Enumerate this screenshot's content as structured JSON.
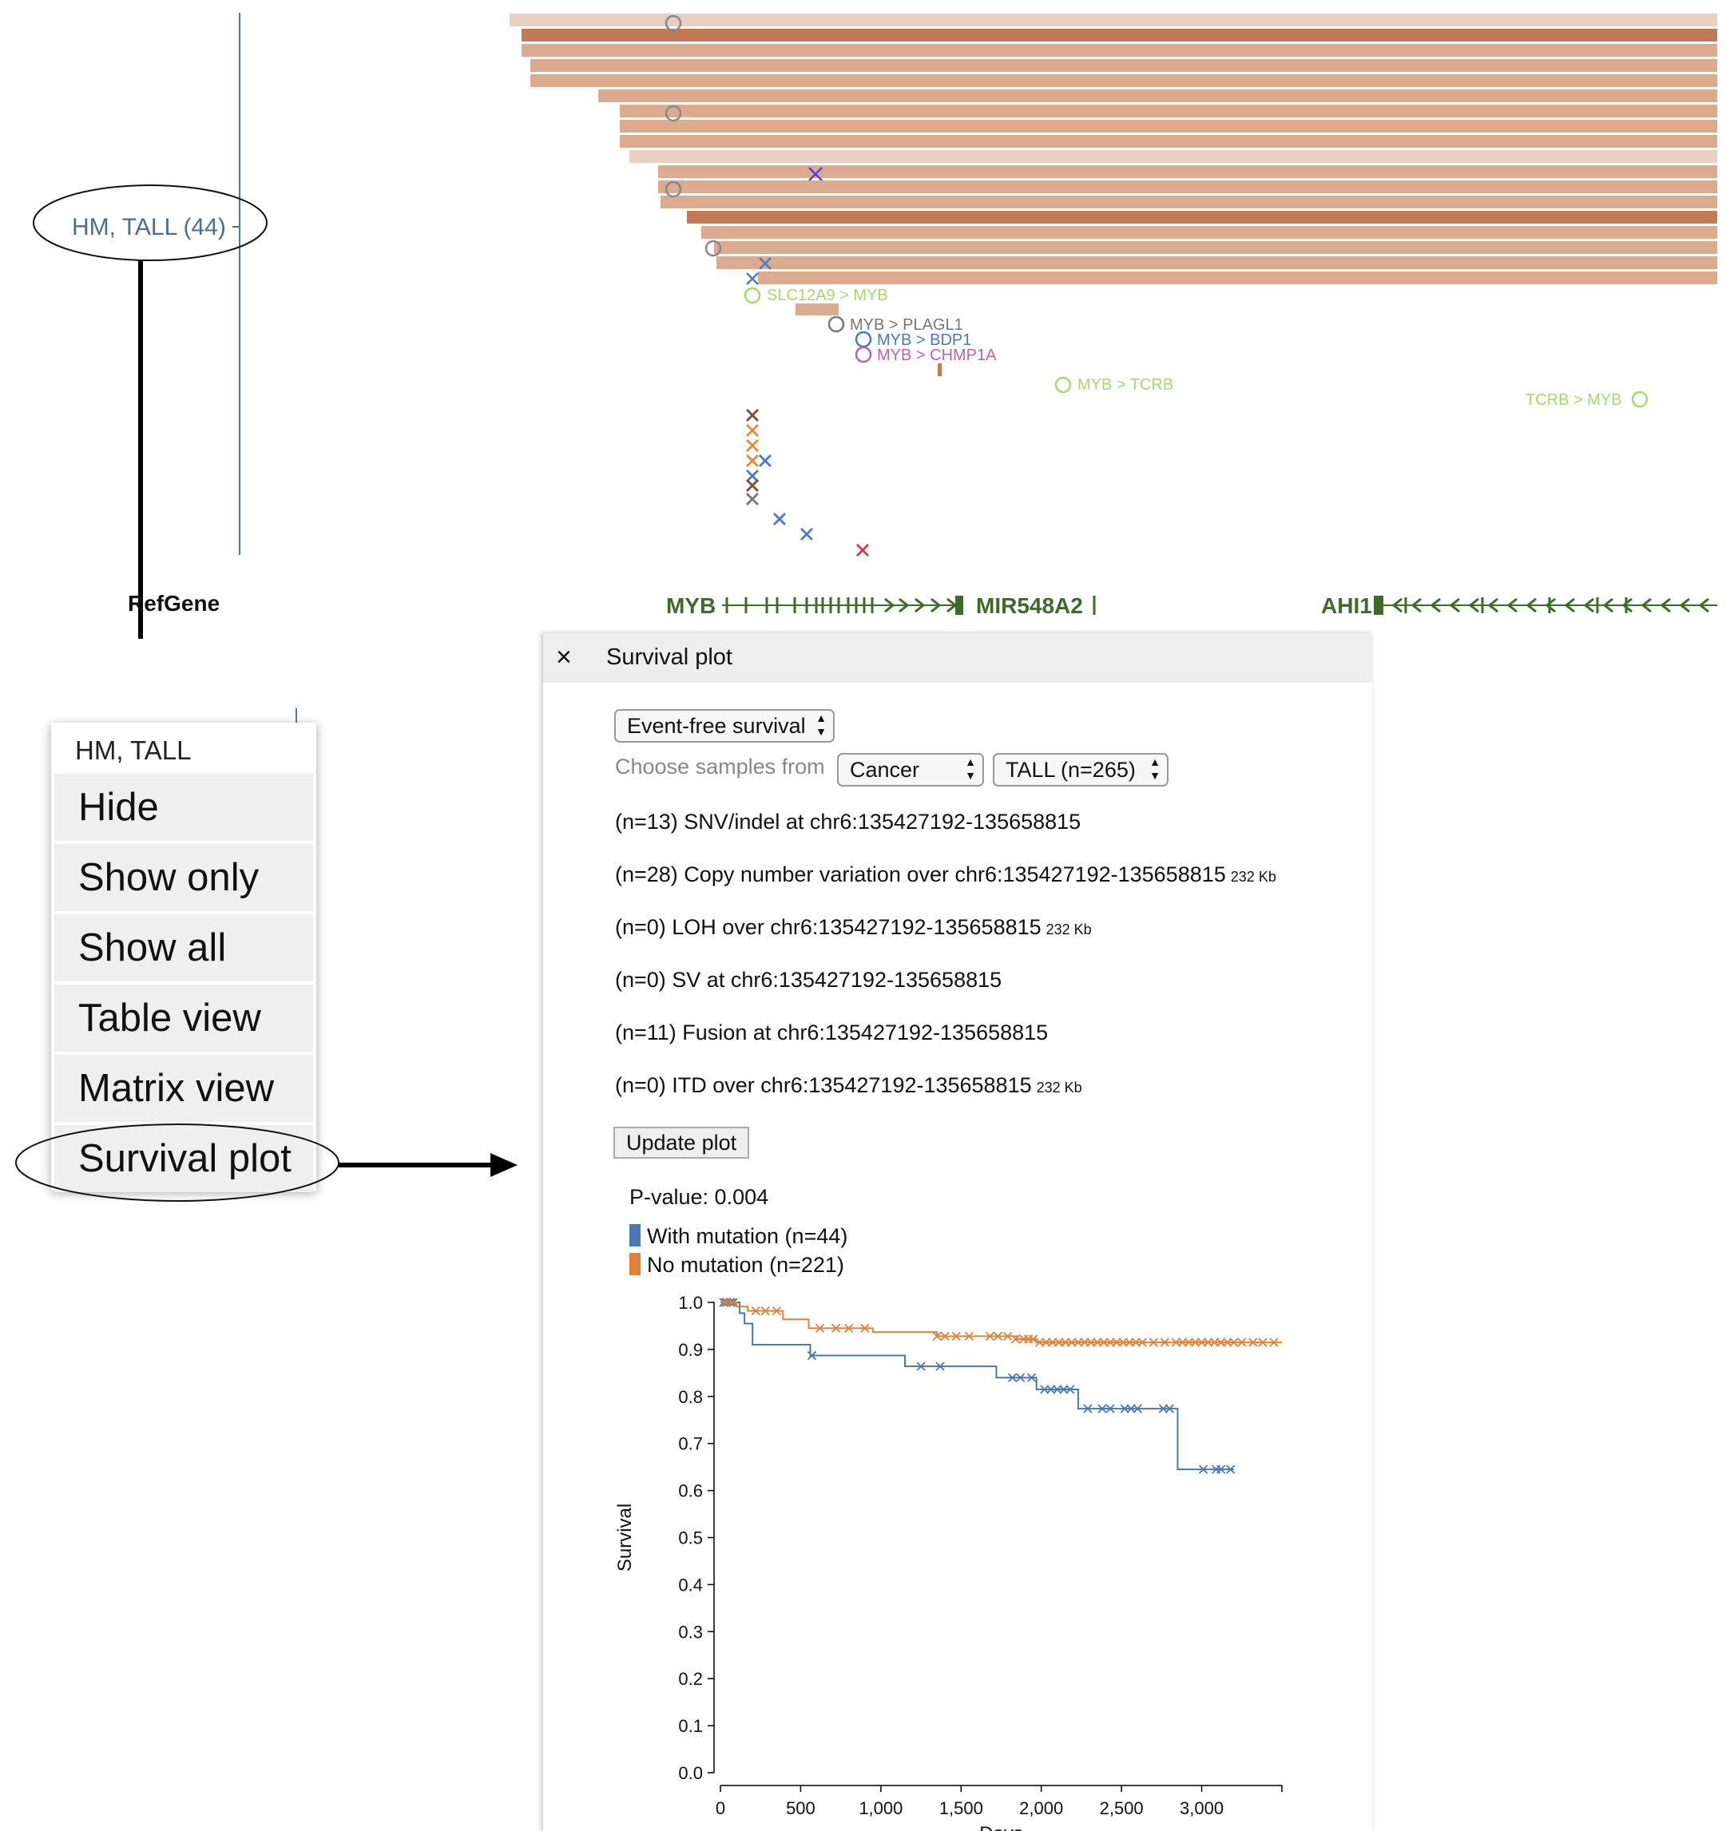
{
  "track": {
    "label": "HM, TALL (44)",
    "refgene_label": "RefGene",
    "fusions": [
      {
        "text": "SLC12A9 > MYB",
        "color": "#a6d96a"
      },
      {
        "text": "MYB > PLAGL1",
        "color": "#777777"
      },
      {
        "text": "MYB > BDP1",
        "color": "#4a7ab0"
      },
      {
        "text": "MYB > CHMP1A",
        "color": "#c060b0"
      },
      {
        "text": "MYB > TCRB",
        "color": "#a6d96a"
      },
      {
        "text": "TCRB > MYB",
        "color": "#a6d96a"
      }
    ],
    "genes": [
      "MYB",
      "MIR548A2",
      "AHI1"
    ],
    "colors": {
      "cnv_light": "#ead0c2",
      "cnv_mid": "#dcaa8e",
      "cnv_dark": "#c27a54",
      "gene": "#3d6b2a",
      "track_line": "#4a7ab0"
    }
  },
  "context_menu": {
    "title": "HM, TALL",
    "items": [
      "Hide",
      "Show only",
      "Show all",
      "Table view",
      "Matrix view",
      "Survival plot"
    ]
  },
  "dialog": {
    "close_icon": "×",
    "title": "Survival plot",
    "survival_type": "Event-free survival",
    "choose_label": "Choose samples from",
    "cancer_select": "Cancer",
    "subtype_select": "TALL (n=265)",
    "mutation_rows": [
      {
        "text": "(n=13) SNV/indel at chr6:135427192-135658815",
        "size": ""
      },
      {
        "text": "(n=28) Copy number variation over chr6:135427192-135658815",
        "size": "232 Kb"
      },
      {
        "text": "(n=0) LOH over chr6:135427192-135658815",
        "size": "232 Kb"
      },
      {
        "text": "(n=0) SV at chr6:135427192-135658815",
        "size": ""
      },
      {
        "text": "(n=11) Fusion at chr6:135427192-135658815",
        "size": ""
      },
      {
        "text": "(n=0) ITD over chr6:135427192-135658815",
        "size": "232 Kb"
      }
    ],
    "update_button": "Update plot"
  },
  "chart_data": {
    "type": "line",
    "step": true,
    "pvalue_text": "P-value: 0.004",
    "xlabel": "Days",
    "ylabel": "Survival",
    "xlim": [
      0,
      3500
    ],
    "ylim": [
      0,
      1.0
    ],
    "x_ticks": [
      0,
      500,
      1000,
      1500,
      2000,
      2500,
      3000
    ],
    "x_tick_labels": [
      "0",
      "500",
      "1,000",
      "1,500",
      "2,000",
      "2,500",
      "3,000"
    ],
    "y_ticks": [
      0,
      0.1,
      0.2,
      0.3,
      0.4,
      0.5,
      0.6,
      0.7,
      0.8,
      0.9,
      1.0
    ],
    "y_tick_labels": [
      "0.0",
      "0.1",
      "0.2",
      "0.3",
      "0.4",
      "0.5",
      "0.6",
      "0.7",
      "0.8",
      "0.9",
      "1.0"
    ],
    "legend_position": "top-left",
    "series": [
      {
        "name": "With mutation (n=44)",
        "color": "#4a78b0",
        "steps": [
          [
            0,
            1.0
          ],
          [
            120,
            0.977
          ],
          [
            150,
            0.955
          ],
          [
            200,
            0.91
          ],
          [
            560,
            0.887
          ],
          [
            1150,
            0.864
          ],
          [
            1720,
            0.84
          ],
          [
            1970,
            0.815
          ],
          [
            2230,
            0.774
          ],
          [
            2850,
            0.645
          ],
          [
            3200,
            0.645
          ]
        ],
        "censored": [
          [
            20,
            1.0
          ],
          [
            40,
            1.0
          ],
          [
            60,
            1.0
          ],
          [
            80,
            1.0
          ],
          [
            570,
            0.887
          ],
          [
            1250,
            0.864
          ],
          [
            1370,
            0.864
          ],
          [
            1820,
            0.84
          ],
          [
            1870,
            0.84
          ],
          [
            1940,
            0.84
          ],
          [
            2020,
            0.815
          ],
          [
            2060,
            0.815
          ],
          [
            2100,
            0.815
          ],
          [
            2140,
            0.815
          ],
          [
            2180,
            0.815
          ],
          [
            2290,
            0.774
          ],
          [
            2380,
            0.774
          ],
          [
            2430,
            0.774
          ],
          [
            2520,
            0.774
          ],
          [
            2560,
            0.774
          ],
          [
            2600,
            0.774
          ],
          [
            2760,
            0.774
          ],
          [
            2800,
            0.774
          ],
          [
            3010,
            0.645
          ],
          [
            3090,
            0.645
          ],
          [
            3120,
            0.645
          ],
          [
            3180,
            0.645
          ]
        ]
      },
      {
        "name": "No mutation (n=221)",
        "color": "#e0823e",
        "steps": [
          [
            0,
            1.0
          ],
          [
            100,
            0.991
          ],
          [
            170,
            0.982
          ],
          [
            390,
            0.964
          ],
          [
            550,
            0.945
          ],
          [
            950,
            0.937
          ],
          [
            1350,
            0.928
          ],
          [
            1850,
            0.922
          ],
          [
            1970,
            0.915
          ],
          [
            3500,
            0.915
          ]
        ],
        "censored": [
          [
            30,
            1.0
          ],
          [
            70,
            1.0
          ],
          [
            220,
            0.982
          ],
          [
            280,
            0.982
          ],
          [
            350,
            0.982
          ],
          [
            620,
            0.945
          ],
          [
            720,
            0.945
          ],
          [
            800,
            0.945
          ],
          [
            900,
            0.945
          ],
          [
            1350,
            0.928
          ],
          [
            1400,
            0.928
          ],
          [
            1470,
            0.928
          ],
          [
            1550,
            0.928
          ],
          [
            1680,
            0.928
          ],
          [
            1730,
            0.928
          ],
          [
            1790,
            0.928
          ],
          [
            1840,
            0.922
          ],
          [
            1890,
            0.922
          ],
          [
            1920,
            0.922
          ],
          [
            1950,
            0.922
          ],
          [
            1990,
            0.915
          ],
          [
            2030,
            0.915
          ],
          [
            2070,
            0.915
          ],
          [
            2110,
            0.915
          ],
          [
            2150,
            0.915
          ],
          [
            2190,
            0.915
          ],
          [
            2230,
            0.915
          ],
          [
            2270,
            0.915
          ],
          [
            2310,
            0.915
          ],
          [
            2350,
            0.915
          ],
          [
            2390,
            0.915
          ],
          [
            2430,
            0.915
          ],
          [
            2470,
            0.915
          ],
          [
            2510,
            0.915
          ],
          [
            2550,
            0.915
          ],
          [
            2590,
            0.915
          ],
          [
            2630,
            0.915
          ],
          [
            2700,
            0.915
          ],
          [
            2770,
            0.915
          ],
          [
            2840,
            0.915
          ],
          [
            2880,
            0.915
          ],
          [
            2920,
            0.915
          ],
          [
            2960,
            0.915
          ],
          [
            3000,
            0.915
          ],
          [
            3040,
            0.915
          ],
          [
            3080,
            0.915
          ],
          [
            3120,
            0.915
          ],
          [
            3160,
            0.915
          ],
          [
            3200,
            0.915
          ],
          [
            3250,
            0.915
          ],
          [
            3320,
            0.915
          ],
          [
            3380,
            0.915
          ],
          [
            3450,
            0.915
          ]
        ]
      }
    ]
  }
}
